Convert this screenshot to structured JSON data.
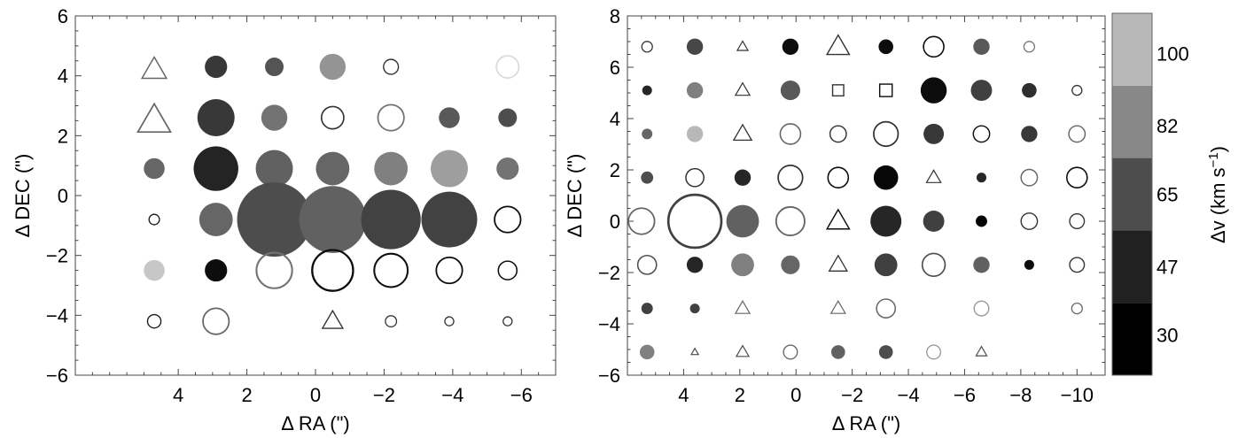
{
  "chart_data": [
    {
      "type": "scatter",
      "xlabel": "Δ RA (\")",
      "ylabel": "Δ DEC (\")",
      "xlim": [
        7,
        -7
      ],
      "ylim": [
        -6,
        6
      ],
      "xticks": [
        4,
        2,
        0,
        -2,
        -4,
        -6
      ],
      "yticks": [
        6,
        4,
        2,
        0,
        -2,
        -4,
        -6
      ],
      "points": [
        {
          "x": 4.7,
          "y": 4.2,
          "shape": "triangle-open",
          "size": 3,
          "shade": 0.4
        },
        {
          "x": 2.9,
          "y": 4.3,
          "shape": "disk",
          "size": 3,
          "shade": 0.22
        },
        {
          "x": 1.2,
          "y": 4.3,
          "shape": "disk",
          "size": 2.5,
          "shade": 0.33
        },
        {
          "x": -0.5,
          "y": 4.3,
          "shape": "disk",
          "size": 3.5,
          "shade": 0.58
        },
        {
          "x": -2.2,
          "y": 4.3,
          "shape": "circle-open",
          "size": 2,
          "shade": 0.2
        },
        {
          "x": -5.6,
          "y": 4.3,
          "shape": "circle-open",
          "size": 3,
          "shade": 0.85
        },
        {
          "x": 4.7,
          "y": 2.5,
          "shape": "triangle-open",
          "size": 4,
          "shade": 0.4
        },
        {
          "x": 2.9,
          "y": 2.6,
          "shape": "disk",
          "size": 5,
          "shade": 0.22
        },
        {
          "x": 1.2,
          "y": 2.6,
          "shape": "disk",
          "size": 3.5,
          "shade": 0.45
        },
        {
          "x": -0.5,
          "y": 2.6,
          "shape": "circle-open",
          "size": 3,
          "shade": 0.2
        },
        {
          "x": -2.2,
          "y": 2.6,
          "shape": "circle-open",
          "size": 3.5,
          "shade": 0.45
        },
        {
          "x": -3.9,
          "y": 2.6,
          "shape": "disk",
          "size": 2.8,
          "shade": 0.35
        },
        {
          "x": -5.6,
          "y": 2.6,
          "shape": "disk",
          "size": 2.5,
          "shade": 0.3
        },
        {
          "x": 4.7,
          "y": 0.9,
          "shape": "disk",
          "size": 2.8,
          "shade": 0.4
        },
        {
          "x": 2.9,
          "y": 0.9,
          "shape": "disk",
          "size": 6,
          "shade": 0.14
        },
        {
          "x": 1.2,
          "y": 0.9,
          "shape": "disk",
          "size": 5,
          "shade": 0.38
        },
        {
          "x": -0.5,
          "y": 0.9,
          "shape": "disk",
          "size": 4.5,
          "shade": 0.4
        },
        {
          "x": -2.2,
          "y": 0.9,
          "shape": "disk",
          "size": 4.5,
          "shade": 0.5
        },
        {
          "x": -3.9,
          "y": 0.9,
          "shape": "disk",
          "size": 5,
          "shade": 0.62
        },
        {
          "x": -5.6,
          "y": 0.9,
          "shape": "disk",
          "size": 3,
          "shade": 0.45
        },
        {
          "x": 4.7,
          "y": -0.8,
          "shape": "circle-open",
          "size": 1.4,
          "shade": 0.1
        },
        {
          "x": 2.9,
          "y": -0.8,
          "shape": "disk",
          "size": 4.5,
          "shade": 0.4
        },
        {
          "x": 1.2,
          "y": -0.8,
          "shape": "disk",
          "size": 10,
          "shade": 0.3
        },
        {
          "x": -0.5,
          "y": -0.8,
          "shape": "disk",
          "size": 9,
          "shade": 0.38
        },
        {
          "x": -2.2,
          "y": -0.8,
          "shape": "disk",
          "size": 8,
          "shade": 0.26
        },
        {
          "x": -3.9,
          "y": -0.8,
          "shape": "disk",
          "size": 7.5,
          "shade": 0.26
        },
        {
          "x": -5.6,
          "y": -0.8,
          "shape": "circle-open",
          "size": 3.5,
          "shade": 0.05
        },
        {
          "x": 4.7,
          "y": -2.5,
          "shape": "disk",
          "size": 2.8,
          "shade": 0.78
        },
        {
          "x": 2.9,
          "y": -2.5,
          "shape": "disk",
          "size": 3,
          "shade": 0.05
        },
        {
          "x": 1.2,
          "y": -2.5,
          "shape": "circle-open",
          "size": 4.8,
          "shade": 0.45
        },
        {
          "x": -0.5,
          "y": -2.5,
          "shape": "circle-open",
          "size": 5.5,
          "shade": 0.05
        },
        {
          "x": -2.2,
          "y": -2.5,
          "shape": "circle-open",
          "size": 4.5,
          "shade": 0.05
        },
        {
          "x": -3.9,
          "y": -2.5,
          "shape": "circle-open",
          "size": 3.5,
          "shade": 0.05
        },
        {
          "x": -5.6,
          "y": -2.5,
          "shape": "circle-open",
          "size": 2.5,
          "shade": 0.05
        },
        {
          "x": 4.7,
          "y": -4.2,
          "shape": "circle-open",
          "size": 1.8,
          "shade": 0.1
        },
        {
          "x": 2.9,
          "y": -4.2,
          "shape": "circle-open",
          "size": 3.5,
          "shade": 0.4
        },
        {
          "x": -0.5,
          "y": -4.2,
          "shape": "triangle-open",
          "size": 2.5,
          "shade": 0.2
        },
        {
          "x": -2.2,
          "y": -4.2,
          "shape": "circle-open",
          "size": 1.5,
          "shade": 0.2
        },
        {
          "x": -3.9,
          "y": -4.2,
          "shape": "circle-open",
          "size": 1.2,
          "shade": 0.2
        },
        {
          "x": -5.6,
          "y": -4.2,
          "shape": "circle-open",
          "size": 1.2,
          "shade": 0.2
        }
      ]
    },
    {
      "type": "scatter",
      "xlabel": "Δ RA (\")",
      "ylabel": "Δ DEC (\")",
      "xlim": [
        6,
        -11
      ],
      "ylim": [
        -6,
        8
      ],
      "xticks": [
        4,
        2,
        0,
        -2,
        -4,
        -6,
        -8,
        -10
      ],
      "yticks": [
        8,
        6,
        4,
        2,
        0,
        -2,
        -4,
        -6
      ],
      "points": [
        {
          "x": 5.3,
          "y": 6.8,
          "shape": "circle-open",
          "size": 1.3,
          "shade": 0.2
        },
        {
          "x": 3.6,
          "y": 6.8,
          "shape": "disk",
          "size": 2,
          "shade": 0.28
        },
        {
          "x": 1.9,
          "y": 6.8,
          "shape": "triangle-open",
          "size": 1.2,
          "shade": 0.2
        },
        {
          "x": 0.2,
          "y": 6.8,
          "shape": "disk",
          "size": 2,
          "shade": 0.05
        },
        {
          "x": -1.5,
          "y": 6.8,
          "shape": "triangle-open",
          "size": 2.5,
          "shade": 0.2
        },
        {
          "x": -3.2,
          "y": 6.8,
          "shape": "disk",
          "size": 1.8,
          "shade": 0.05
        },
        {
          "x": -4.9,
          "y": 6.8,
          "shape": "circle-open",
          "size": 2.5,
          "shade": 0.05
        },
        {
          "x": -6.6,
          "y": 6.8,
          "shape": "disk",
          "size": 2,
          "shade": 0.35
        },
        {
          "x": -8.3,
          "y": 6.8,
          "shape": "circle-open",
          "size": 1.3,
          "shade": 0.45
        },
        {
          "x": 5.3,
          "y": 5.1,
          "shape": "disk",
          "size": 1.2,
          "shade": 0.15
        },
        {
          "x": 3.6,
          "y": 5.1,
          "shape": "disk",
          "size": 2,
          "shade": 0.5
        },
        {
          "x": 1.9,
          "y": 5.1,
          "shape": "triangle-open",
          "size": 1.6,
          "shade": 0.2
        },
        {
          "x": 0.2,
          "y": 5.1,
          "shape": "disk",
          "size": 2.4,
          "shade": 0.35
        },
        {
          "x": -1.5,
          "y": 5.1,
          "shape": "square-open",
          "size": 1.6,
          "shade": 0.2
        },
        {
          "x": -3.2,
          "y": 5.1,
          "shape": "square-open",
          "size": 1.8,
          "shade": 0.05
        },
        {
          "x": -4.9,
          "y": 5.1,
          "shape": "disk",
          "size": 3.2,
          "shade": 0.05
        },
        {
          "x": -6.6,
          "y": 5.1,
          "shape": "disk",
          "size": 2.6,
          "shade": 0.25
        },
        {
          "x": -8.3,
          "y": 5.1,
          "shape": "disk",
          "size": 1.8,
          "shade": 0.18
        },
        {
          "x": -10.0,
          "y": 5.1,
          "shape": "circle-open",
          "size": 1.2,
          "shade": 0.2
        },
        {
          "x": 5.3,
          "y": 3.4,
          "shape": "disk",
          "size": 1.3,
          "shade": 0.4
        },
        {
          "x": 3.6,
          "y": 3.4,
          "shape": "disk",
          "size": 2,
          "shade": 0.72
        },
        {
          "x": 1.9,
          "y": 3.4,
          "shape": "triangle-open",
          "size": 2,
          "shade": 0.2
        },
        {
          "x": 0.2,
          "y": 3.4,
          "shape": "circle-open",
          "size": 2.5,
          "shade": 0.4
        },
        {
          "x": -1.5,
          "y": 3.4,
          "shape": "circle-open",
          "size": 2,
          "shade": 0.2
        },
        {
          "x": -3.2,
          "y": 3.4,
          "shape": "circle-open",
          "size": 3,
          "shade": 0.2
        },
        {
          "x": -4.9,
          "y": 3.4,
          "shape": "disk",
          "size": 2.5,
          "shade": 0.22
        },
        {
          "x": -6.6,
          "y": 3.4,
          "shape": "circle-open",
          "size": 2,
          "shade": 0.05
        },
        {
          "x": -8.3,
          "y": 3.4,
          "shape": "disk",
          "size": 2,
          "shade": 0.22
        },
        {
          "x": -10.0,
          "y": 3.4,
          "shape": "circle-open",
          "size": 2,
          "shade": 0.4
        },
        {
          "x": 5.3,
          "y": 1.7,
          "shape": "disk",
          "size": 1.5,
          "shade": 0.3
        },
        {
          "x": 3.6,
          "y": 1.7,
          "shape": "circle-open",
          "size": 2.2,
          "shade": 0.2
        },
        {
          "x": 1.9,
          "y": 1.7,
          "shape": "disk",
          "size": 2,
          "shade": 0.15
        },
        {
          "x": 0.2,
          "y": 1.7,
          "shape": "circle-open",
          "size": 3,
          "shade": 0.2
        },
        {
          "x": -1.5,
          "y": 1.7,
          "shape": "circle-open",
          "size": 2.5,
          "shade": 0.05
        },
        {
          "x": -3.2,
          "y": 1.7,
          "shape": "disk",
          "size": 3,
          "shade": 0.03
        },
        {
          "x": -4.9,
          "y": 1.7,
          "shape": "triangle-open",
          "size": 1.6,
          "shade": 0.2
        },
        {
          "x": -6.6,
          "y": 1.7,
          "shape": "disk",
          "size": 1.2,
          "shade": 0.15
        },
        {
          "x": -8.3,
          "y": 1.7,
          "shape": "circle-open",
          "size": 2,
          "shade": 0.4
        },
        {
          "x": -10.0,
          "y": 1.7,
          "shape": "circle-open",
          "size": 2.5,
          "shade": 0.05
        },
        {
          "x": 5.5,
          "y": 0.0,
          "shape": "circle-open",
          "size": 3.2,
          "shade": 0.4
        },
        {
          "x": 3.6,
          "y": 0.0,
          "shape": "circle-open",
          "size": 6.5,
          "shade": 0.25
        },
        {
          "x": 1.9,
          "y": 0.0,
          "shape": "disk",
          "size": 4,
          "shade": 0.38
        },
        {
          "x": 0.2,
          "y": 0.0,
          "shape": "circle-open",
          "size": 3.5,
          "shade": 0.4
        },
        {
          "x": -1.5,
          "y": 0.0,
          "shape": "triangle-open",
          "size": 2.5,
          "shade": 0.05
        },
        {
          "x": -3.2,
          "y": 0.0,
          "shape": "disk",
          "size": 3.8,
          "shade": 0.15
        },
        {
          "x": -4.9,
          "y": 0.0,
          "shape": "disk",
          "size": 2.6,
          "shade": 0.25
        },
        {
          "x": -6.6,
          "y": 0.0,
          "shape": "disk",
          "size": 1.4,
          "shade": 0.02
        },
        {
          "x": -8.3,
          "y": 0.0,
          "shape": "circle-open",
          "size": 2,
          "shade": 0.2
        },
        {
          "x": -10.0,
          "y": 0.0,
          "shape": "circle-open",
          "size": 1.8,
          "shade": 0.2
        },
        {
          "x": 5.3,
          "y": -1.7,
          "shape": "circle-open",
          "size": 2.3,
          "shade": 0.3
        },
        {
          "x": 3.6,
          "y": -1.7,
          "shape": "disk",
          "size": 2,
          "shade": 0.15
        },
        {
          "x": 1.9,
          "y": -1.7,
          "shape": "disk",
          "size": 2.8,
          "shade": 0.5
        },
        {
          "x": 0.2,
          "y": -1.7,
          "shape": "disk",
          "size": 2.3,
          "shade": 0.4
        },
        {
          "x": -1.5,
          "y": -1.7,
          "shape": "triangle-open",
          "size": 2,
          "shade": 0.2
        },
        {
          "x": -3.2,
          "y": -1.7,
          "shape": "disk",
          "size": 2.8,
          "shade": 0.25
        },
        {
          "x": -4.9,
          "y": -1.7,
          "shape": "circle-open",
          "size": 2.8,
          "shade": 0.3
        },
        {
          "x": -6.6,
          "y": -1.7,
          "shape": "disk",
          "size": 2,
          "shade": 0.38
        },
        {
          "x": -8.3,
          "y": -1.7,
          "shape": "disk",
          "size": 1.2,
          "shade": 0.05
        },
        {
          "x": -10.0,
          "y": -1.7,
          "shape": "circle-open",
          "size": 1.8,
          "shade": 0.2
        },
        {
          "x": 5.3,
          "y": -3.4,
          "shape": "disk",
          "size": 1.4,
          "shade": 0.25
        },
        {
          "x": 3.6,
          "y": -3.4,
          "shape": "disk",
          "size": 1.2,
          "shade": 0.25
        },
        {
          "x": 1.9,
          "y": -3.4,
          "shape": "triangle-open",
          "size": 1.6,
          "shade": 0.4
        },
        {
          "x": -1.5,
          "y": -3.4,
          "shape": "triangle-open",
          "size": 1.6,
          "shade": 0.4
        },
        {
          "x": -3.2,
          "y": -3.4,
          "shape": "circle-open",
          "size": 2.3,
          "shade": 0.4
        },
        {
          "x": -6.6,
          "y": -3.4,
          "shape": "circle-open",
          "size": 1.8,
          "shade": 0.6
        },
        {
          "x": -10.0,
          "y": -3.4,
          "shape": "circle-open",
          "size": 1.3,
          "shade": 0.4
        },
        {
          "x": 5.3,
          "y": -5.1,
          "shape": "disk",
          "size": 1.8,
          "shade": 0.5
        },
        {
          "x": 3.6,
          "y": -5.1,
          "shape": "triangle-open",
          "size": 0.8,
          "shade": 0.3
        },
        {
          "x": 1.9,
          "y": -5.1,
          "shape": "triangle-open",
          "size": 1.4,
          "shade": 0.3
        },
        {
          "x": 0.2,
          "y": -5.1,
          "shape": "circle-open",
          "size": 1.7,
          "shade": 0.4
        },
        {
          "x": -1.5,
          "y": -5.1,
          "shape": "disk",
          "size": 1.7,
          "shade": 0.38
        },
        {
          "x": -3.2,
          "y": -5.1,
          "shape": "disk",
          "size": 1.7,
          "shade": 0.3
        },
        {
          "x": -4.9,
          "y": -5.1,
          "shape": "circle-open",
          "size": 1.7,
          "shade": 0.6
        },
        {
          "x": -6.6,
          "y": -5.1,
          "shape": "triangle-open",
          "size": 1.2,
          "shade": 0.3
        }
      ]
    }
  ],
  "colorbar": {
    "label": "Δv (km s",
    "label_superscript": "−1",
    "label_close": ")",
    "range": [
      20,
      110
    ],
    "bands": [
      {
        "from": 20,
        "to": 38,
        "color": "#000000"
      },
      {
        "from": 38,
        "to": 56,
        "color": "#212121"
      },
      {
        "from": 56,
        "to": 74,
        "color": "#4d4d4d"
      },
      {
        "from": 74,
        "to": 92,
        "color": "#888888"
      },
      {
        "from": 92,
        "to": 110,
        "color": "#b8b8b8"
      }
    ],
    "ticks": [
      {
        "value": 30,
        "label": "30"
      },
      {
        "value": 47,
        "label": "47"
      },
      {
        "value": 65,
        "label": "65"
      },
      {
        "value": 82,
        "label": "82"
      },
      {
        "value": 100,
        "label": "100"
      }
    ]
  }
}
